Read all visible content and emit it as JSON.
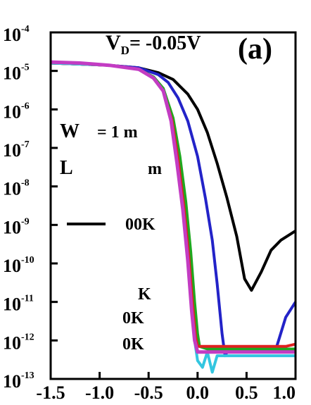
{
  "chart_data": {
    "type": "line",
    "title": "",
    "xlabel": "",
    "ylabel": "",
    "xlim": [
      -1.5,
      1.0
    ],
    "ylim_exp": [
      -13,
      -4
    ],
    "y_scale": "log",
    "x_ticks": [
      "-1.5",
      "-1.0",
      "-0.5",
      "0.0",
      "0.5",
      "1.0"
    ],
    "y_ticks": [
      {
        "base": "10",
        "exp": "-4"
      },
      {
        "base": "10",
        "exp": "-5"
      },
      {
        "base": "10",
        "exp": "-6"
      },
      {
        "base": "10",
        "exp": "-7"
      },
      {
        "base": "10",
        "exp": "-8"
      },
      {
        "base": "10",
        "exp": "-9"
      },
      {
        "base": "10",
        "exp": "-10"
      },
      {
        "base": "10",
        "exp": "-11"
      },
      {
        "base": "10",
        "exp": "-12"
      },
      {
        "base": "10",
        "exp": "-13"
      }
    ],
    "annotations": {
      "vd_main": "V",
      "vd_sub": "D",
      "vd_value": "= -0.05V",
      "panel": "(a)",
      "w_label": "W",
      "w_rest": "= 1 m",
      "l_label": "L",
      "l_rest": "m",
      "legend_entries": [
        "00K",
        "",
        "",
        "K",
        "0K",
        "0K"
      ]
    },
    "grid": false,
    "series": [
      {
        "color": "#000000",
        "x": [
          -1.5,
          -1.2,
          -0.9,
          -0.6,
          -0.4,
          -0.25,
          -0.1,
          0.0,
          0.1,
          0.2,
          0.3,
          0.4,
          0.48,
          0.55,
          0.65,
          0.75,
          0.85,
          1.0
        ],
        "y": [
          1.6e-05,
          1.5e-05,
          1.4e-05,
          1.2e-05,
          9e-06,
          6e-06,
          2.5e-06,
          1e-06,
          2.5e-07,
          4e-08,
          5e-09,
          5e-10,
          4e-11,
          2e-11,
          6e-11,
          2.2e-10,
          4e-10,
          7e-10
        ]
      },
      {
        "color": "#2323c8",
        "x": [
          -1.5,
          -1.2,
          -0.9,
          -0.6,
          -0.4,
          -0.3,
          -0.2,
          -0.1,
          0.0,
          0.08,
          0.15,
          0.2,
          0.25,
          0.28,
          0.32,
          0.4,
          0.5,
          0.6,
          0.7,
          0.8,
          0.9,
          1.0
        ],
        "y": [
          1.6e-05,
          1.5e-05,
          1.4e-05,
          1.2e-05,
          8e-06,
          5e-06,
          2e-06,
          5e-07,
          6e-08,
          5e-09,
          4e-10,
          3e-11,
          1.5e-12,
          4e-13,
          6e-13,
          6e-13,
          6e-13,
          5e-13,
          5e-13,
          6e-13,
          4e-12,
          1e-11
        ]
      },
      {
        "color": "#1fa81f",
        "x": [
          -1.5,
          -1.2,
          -0.9,
          -0.6,
          -0.45,
          -0.35,
          -0.25,
          -0.18,
          -0.12,
          -0.07,
          -0.03,
          0.0,
          0.02,
          0.1,
          0.3,
          0.5,
          0.7,
          0.9,
          1.0
        ],
        "y": [
          1.6e-05,
          1.5e-05,
          1.4e-05,
          1.1e-05,
          7e-06,
          3.5e-06,
          6e-07,
          6e-08,
          4e-09,
          2e-10,
          1e-11,
          1.5e-12,
          7e-13,
          6e-13,
          6e-13,
          6e-13,
          6e-13,
          6e-13,
          6e-13
        ]
      },
      {
        "color": "#e02020",
        "x": [
          -1.5,
          -1.2,
          -0.9,
          -0.6,
          -0.45,
          -0.35,
          -0.26,
          -0.2,
          -0.14,
          -0.09,
          -0.05,
          -0.02,
          0.0,
          0.1,
          0.3,
          0.5,
          0.7,
          0.9,
          1.0
        ],
        "y": [
          1.6e-05,
          1.5e-05,
          1.4e-05,
          1.1e-05,
          6.5e-06,
          3e-06,
          5e-07,
          5e-08,
          3e-09,
          1.5e-10,
          8e-12,
          1.2e-12,
          7e-13,
          7e-13,
          7e-13,
          7e-13,
          7e-13,
          7e-13,
          8e-13
        ]
      },
      {
        "color": "#33c6e0",
        "x": [
          -1.5,
          -1.2,
          -0.9,
          -0.6,
          -0.45,
          -0.35,
          -0.27,
          -0.21,
          -0.15,
          -0.1,
          -0.06,
          -0.03,
          0.0,
          0.05,
          0.1,
          0.15,
          0.2,
          0.3,
          0.45,
          0.6,
          0.8,
          1.0
        ],
        "y": [
          1.6e-05,
          1.5e-05,
          1.4e-05,
          1.1e-05,
          6.5e-06,
          3e-06,
          5e-07,
          4e-08,
          2.5e-09,
          1.2e-10,
          6e-12,
          1e-12,
          3e-13,
          2e-13,
          5e-13,
          1.5e-13,
          4e-13,
          4e-13,
          4e-13,
          4e-13,
          4e-13,
          4e-13
        ]
      },
      {
        "color": "#c33cc3",
        "x": [
          -1.5,
          -1.2,
          -0.9,
          -0.6,
          -0.45,
          -0.35,
          -0.27,
          -0.21,
          -0.15,
          -0.1,
          -0.06,
          -0.03,
          0.0,
          0.1,
          0.3,
          0.5,
          0.7,
          0.9,
          1.0
        ],
        "y": [
          1.7e-05,
          1.6e-05,
          1.4e-05,
          1.1e-05,
          6.5e-06,
          3e-06,
          5e-07,
          4e-08,
          2.5e-09,
          1.2e-10,
          6e-12,
          1e-12,
          5e-13,
          5e-13,
          5e-13,
          5e-13,
          5e-13,
          5e-13,
          5e-13
        ]
      }
    ],
    "colors": {
      "axis": "#000000",
      "black": "#000000",
      "blue": "#2323c8",
      "green": "#1fa81f",
      "red": "#e02020",
      "cyan": "#33c6e0",
      "magenta": "#c33cc3"
    }
  }
}
